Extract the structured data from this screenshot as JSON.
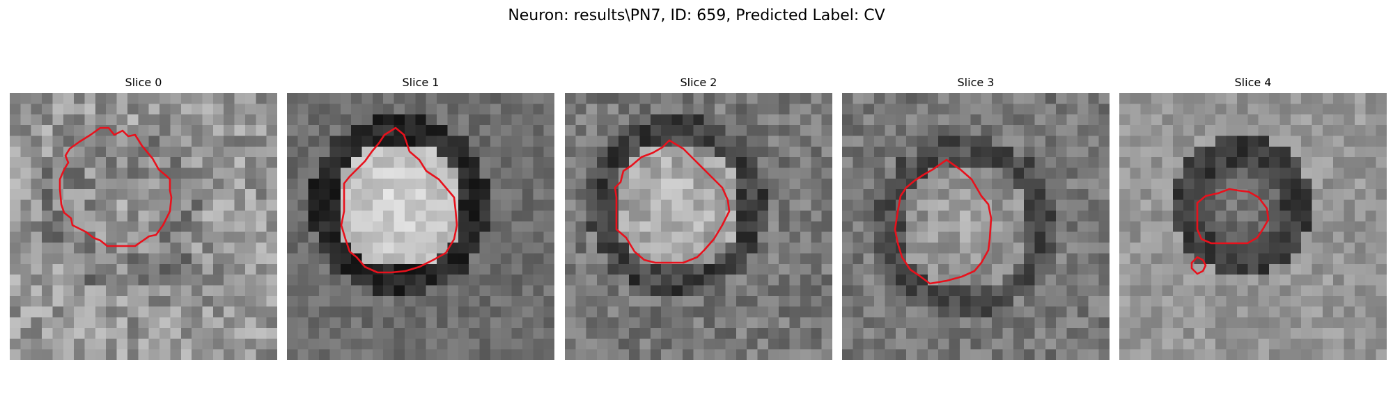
{
  "figure": {
    "title": "Neuron: results\\PN7, ID: 659, Predicted Label: CV"
  },
  "style": {
    "contour_color": "#e8111c",
    "colormap": "grayscale"
  },
  "slices": [
    {
      "title": "Slice 0"
    },
    {
      "title": "Slice 1"
    },
    {
      "title": "Slice 2"
    },
    {
      "title": "Slice 3"
    },
    {
      "title": "Slice 4"
    }
  ]
}
